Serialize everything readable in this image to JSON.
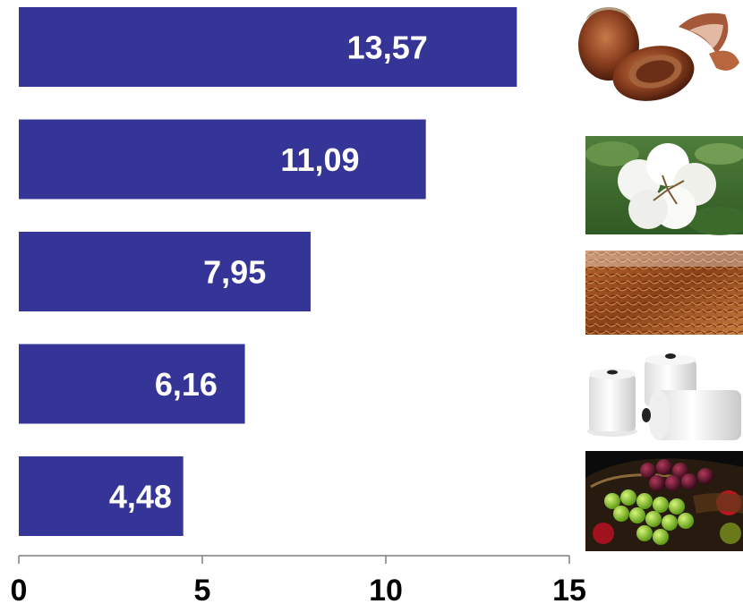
{
  "chart_data": {
    "type": "bar",
    "orientation": "horizontal",
    "title": "",
    "xlabel": "",
    "ylabel": "",
    "xlim": [
      0,
      15
    ],
    "xticks": [
      "0",
      "5",
      "10",
      "15"
    ],
    "grid": false,
    "legend": "none",
    "bar_color": "#353597",
    "values": [
      13.57,
      11.09,
      7.95,
      6.16,
      4.48
    ],
    "value_labels": [
      "13,57",
      "11,09",
      "7,95",
      "6,16",
      "4,48"
    ],
    "category_icons": [
      "hazelnut-image",
      "cotton-image",
      "tobacco-image",
      "yarn-spools-image",
      "grapes-fruit-basket-image"
    ]
  }
}
